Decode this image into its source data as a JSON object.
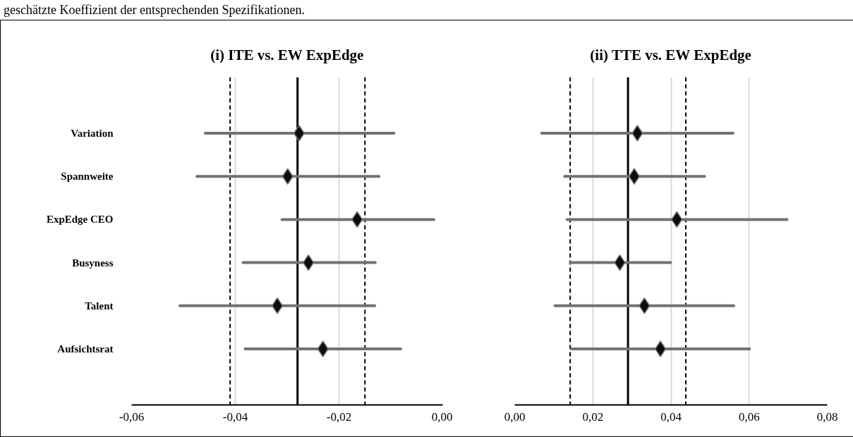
{
  "chart_data": [
    {
      "type": "scatter",
      "title": "(i) ITE vs. EW ExpEdge",
      "orientation": "horizontal",
      "marker": "diamond",
      "grid": "x",
      "annotations": [
        "geschätzte Koeffizient der entsprechenden Spezifikationen."
      ],
      "categories": [
        "Variation",
        "Spannweite",
        "ExpEdge CEO",
        "Busyness",
        "Talent",
        "Aufsichtsrat"
      ],
      "series": [
        {
          "color": "#0d0d0d",
          "values": [
            -0.0277,
            -0.0299,
            -0.0165,
            -0.0259,
            -0.0319,
            -0.0231
          ],
          "errors": [
            [
              -0.0458,
              -0.0094
            ],
            [
              -0.0474,
              -0.0123
            ],
            [
              -0.031,
              -0.0017
            ],
            [
              -0.0385,
              -0.013
            ],
            [
              -0.0507,
              -0.0131
            ],
            [
              -0.0381,
              -0.0081
            ]
          ]
        }
      ],
      "xlim": [
        -0.06,
        0.0
      ],
      "xticks": [
        {
          "value": -0.06,
          "label": "-0,06"
        },
        {
          "value": -0.04,
          "label": "-0,04"
        },
        {
          "value": -0.02,
          "label": "-0,02"
        },
        {
          "value": 0.0,
          "label": "0,00"
        }
      ],
      "ref_lines": [
        {
          "axis": "x",
          "value": -0.028,
          "line_style": "solid",
          "color": "#000000"
        },
        {
          "axis": "x",
          "value": -0.041,
          "line_style": "dashed",
          "color": "#000000"
        },
        {
          "axis": "x",
          "value": -0.015,
          "line_style": "dashed",
          "color": "#000000"
        }
      ]
    },
    {
      "type": "scatter",
      "title": "(ii) TTE vs. EW ExpEdge",
      "orientation": "horizontal",
      "marker": "diamond",
      "grid": "x",
      "tick_labels": "x",
      "categories": [
        null,
        null,
        null,
        null,
        null,
        null
      ],
      "series": [
        {
          "color": "#0d0d0d",
          "values": [
            0.0314,
            0.0306,
            0.0415,
            0.0269,
            0.0332,
            0.0373
          ],
          "errors": [
            [
              0.0069,
              0.0559
            ],
            [
              0.0128,
              0.0486
            ],
            [
              0.0134,
              0.0697
            ],
            [
              0.0142,
              0.0399
            ],
            [
              0.0103,
              0.0561
            ],
            [
              0.0145,
              0.0601
            ]
          ]
        }
      ],
      "xlim": [
        0.0,
        0.08
      ],
      "xticks": [
        {
          "value": 0.0,
          "label": "0,00"
        },
        {
          "value": 0.02,
          "label": "0,02"
        },
        {
          "value": 0.04,
          "label": "0,04"
        },
        {
          "value": 0.06,
          "label": "0,06"
        },
        {
          "value": 0.08,
          "label": "0,08"
        }
      ],
      "ref_lines": [
        {
          "axis": "x",
          "value": 0.029,
          "line_style": "solid",
          "color": "#000000"
        },
        {
          "axis": "x",
          "value": 0.0142,
          "line_style": "dashed",
          "color": "#000000"
        },
        {
          "axis": "x",
          "value": 0.0438,
          "line_style": "dashed",
          "color": "#000000"
        }
      ]
    }
  ]
}
